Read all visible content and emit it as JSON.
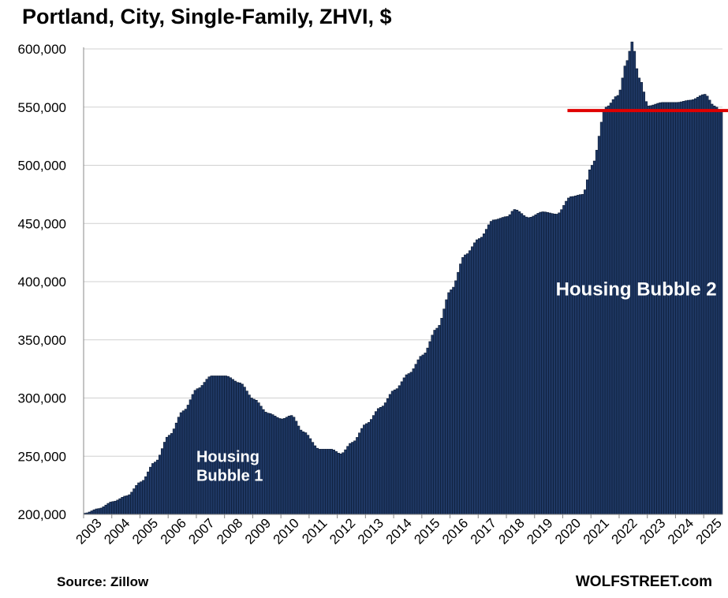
{
  "chart_data": {
    "type": "bar",
    "title": "Portland, City, Single-Family, ZHVI, $",
    "ylim": [
      200000,
      610000
    ],
    "yticks": [
      "200,000",
      "250,000",
      "300,000",
      "350,000",
      "400,000",
      "450,000",
      "500,000",
      "550,000",
      "600,000"
    ],
    "ytick_values": [
      200000,
      250000,
      300000,
      350000,
      400000,
      450000,
      500000,
      550000,
      600000
    ],
    "xticks": [
      "2003",
      "2004",
      "2005",
      "2006",
      "2007",
      "2008",
      "2009",
      "2010",
      "2011",
      "2012",
      "2013",
      "2014",
      "2015",
      "2016",
      "2017",
      "2018",
      "2019",
      "2020",
      "2021",
      "2022",
      "2023",
      "2024",
      "2025"
    ],
    "x_start": "2003-01",
    "x_end": "2025-08",
    "grid": true,
    "bar_color": "#1f3864",
    "reference_line": {
      "value": 547000,
      "from": "2020-03",
      "to": "2025-08",
      "color": "#e00000"
    },
    "monthly_values": [
      {
        "date": "2003-01",
        "value": 201000
      },
      {
        "date": "2003-07",
        "value": 205000
      },
      {
        "date": "2004-01",
        "value": 211000
      },
      {
        "date": "2004-07",
        "value": 216000
      },
      {
        "date": "2005-01",
        "value": 228000
      },
      {
        "date": "2005-07",
        "value": 245000
      },
      {
        "date": "2006-01",
        "value": 268000
      },
      {
        "date": "2006-07",
        "value": 289000
      },
      {
        "date": "2007-01",
        "value": 308000
      },
      {
        "date": "2007-07",
        "value": 319000
      },
      {
        "date": "2008-01",
        "value": 319000
      },
      {
        "date": "2008-07",
        "value": 313000
      },
      {
        "date": "2009-01",
        "value": 299000
      },
      {
        "date": "2009-07",
        "value": 287000
      },
      {
        "date": "2010-01",
        "value": 282000
      },
      {
        "date": "2010-05",
        "value": 285000
      },
      {
        "date": "2010-10",
        "value": 271000
      },
      {
        "date": "2011-05",
        "value": 256000
      },
      {
        "date": "2011-10",
        "value": 256000
      },
      {
        "date": "2012-02",
        "value": 252000
      },
      {
        "date": "2012-07",
        "value": 262000
      },
      {
        "date": "2013-01",
        "value": 278000
      },
      {
        "date": "2013-07",
        "value": 292000
      },
      {
        "date": "2014-01",
        "value": 307000
      },
      {
        "date": "2014-07",
        "value": 321000
      },
      {
        "date": "2015-01",
        "value": 337000
      },
      {
        "date": "2015-07",
        "value": 360000
      },
      {
        "date": "2016-01",
        "value": 393000
      },
      {
        "date": "2016-07",
        "value": 423000
      },
      {
        "date": "2017-01",
        "value": 437000
      },
      {
        "date": "2017-07",
        "value": 453000
      },
      {
        "date": "2018-01",
        "value": 456000
      },
      {
        "date": "2018-04",
        "value": 462000
      },
      {
        "date": "2018-10",
        "value": 455000
      },
      {
        "date": "2019-04",
        "value": 460000
      },
      {
        "date": "2019-10",
        "value": 458000
      },
      {
        "date": "2020-04",
        "value": 473000
      },
      {
        "date": "2020-09",
        "value": 475000
      },
      {
        "date": "2021-01",
        "value": 500000
      },
      {
        "date": "2021-07",
        "value": 550000
      },
      {
        "date": "2021-12",
        "value": 560000
      },
      {
        "date": "2022-04",
        "value": 590000
      },
      {
        "date": "2022-06",
        "value": 606000
      },
      {
        "date": "2022-09",
        "value": 575000
      },
      {
        "date": "2023-01",
        "value": 551000
      },
      {
        "date": "2023-07",
        "value": 554000
      },
      {
        "date": "2024-01",
        "value": 554000
      },
      {
        "date": "2024-07",
        "value": 556000
      },
      {
        "date": "2025-01",
        "value": 561000
      },
      {
        "date": "2025-05",
        "value": 551000
      },
      {
        "date": "2025-08",
        "value": 547000
      }
    ],
    "annotations": [
      {
        "text_lines": [
          "Housing",
          "Bubble 1"
        ],
        "anchor": "2007-01",
        "value": 245000
      },
      {
        "text_lines": [
          "Housing Bubble 2"
        ],
        "anchor": "2019-10",
        "value": 388000
      }
    ]
  },
  "footer": {
    "source": "Source: Zillow",
    "brand": "WOLFSTREET.com"
  }
}
